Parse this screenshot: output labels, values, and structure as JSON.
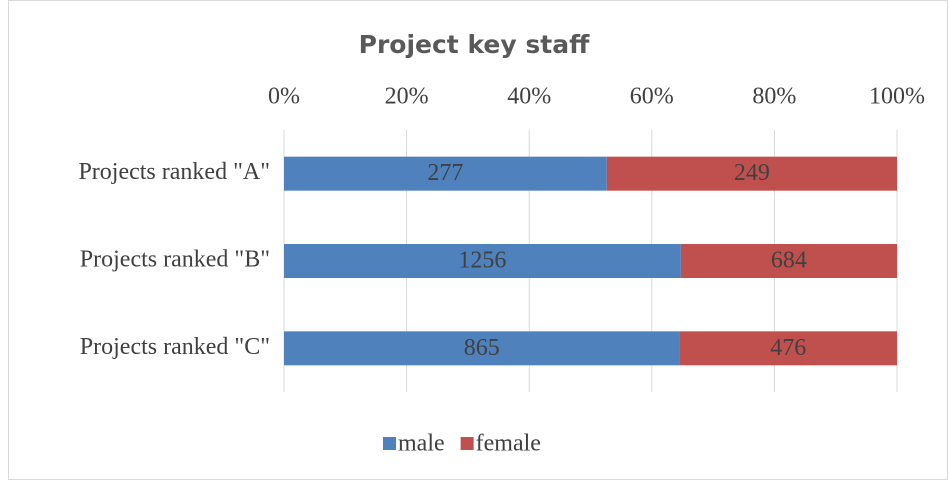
{
  "chart_data": {
    "type": "bar",
    "orientation": "horizontal",
    "stacking": "percent",
    "title": "Project key staff",
    "categories": [
      "Projects ranked \"A\"",
      "Projects ranked \"B\"",
      "Projects ranked \"C\""
    ],
    "series": [
      {
        "name": "male",
        "color": "#4f81bd",
        "values": [
          277,
          1256,
          865
        ]
      },
      {
        "name": "female",
        "color": "#c0504d",
        "values": [
          249,
          684,
          476
        ]
      }
    ],
    "xlim": [
      0,
      100
    ],
    "xticks": [
      {
        "value": 0,
        "label": "0%"
      },
      {
        "value": 20,
        "label": "20%"
      },
      {
        "value": 40,
        "label": "40%"
      },
      {
        "value": 60,
        "label": "60%"
      },
      {
        "value": 80,
        "label": "80%"
      },
      {
        "value": 100,
        "label": "100%"
      }
    ],
    "grid": true,
    "legend": "bottom"
  }
}
